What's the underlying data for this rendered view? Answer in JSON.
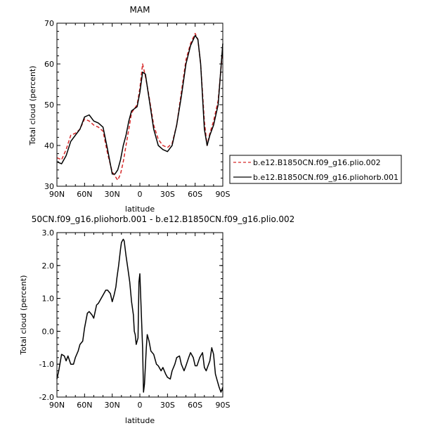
{
  "chart_data": [
    {
      "type": "line",
      "title": "MAM",
      "xlabel": "latitude",
      "ylabel": "Total cloud (percent)",
      "x_ticks": [
        "90N",
        "60N",
        "30N",
        "0",
        "30S",
        "60S",
        "90S"
      ],
      "y_ticks": [
        "30",
        "40",
        "50",
        "60",
        "70"
      ],
      "xlim": [
        90,
        -90
      ],
      "ylim": [
        30,
        70
      ],
      "legend": "right",
      "series": [
        {
          "name": "b.e12.B1850CN.f09_g16.plio.002",
          "color": "#d62728",
          "dash": "dashed",
          "x": [
            90,
            85,
            80,
            75,
            70,
            65,
            60,
            55,
            50,
            45,
            40,
            35,
            30,
            27,
            24,
            21,
            18,
            15,
            12,
            9,
            6,
            3,
            0,
            -3,
            -6,
            -10,
            -15,
            -20,
            -25,
            -30,
            -35,
            -40,
            -45,
            -50,
            -55,
            -60,
            -63,
            -66,
            -70,
            -73,
            -76,
            -80,
            -85,
            -90
          ],
          "y": [
            37,
            36.5,
            39,
            42.5,
            43,
            44,
            46.5,
            46,
            45,
            44.5,
            43.5,
            38,
            33.5,
            32.5,
            31.5,
            33,
            36,
            40,
            44,
            48,
            49,
            50,
            54,
            60,
            57,
            52,
            45,
            41.5,
            40,
            39.5,
            40.5,
            45,
            53,
            61,
            65,
            67.5,
            66,
            60,
            46,
            40,
            43,
            46,
            51,
            64
          ]
        },
        {
          "name": "b.e12.B1850CN.f09_g16.pliohorb.001",
          "color": "#000000",
          "dash": "solid",
          "x": [
            90,
            85,
            80,
            75,
            70,
            65,
            60,
            55,
            50,
            45,
            40,
            35,
            30,
            27,
            24,
            21,
            18,
            15,
            12,
            9,
            6,
            3,
            0,
            -3,
            -6,
            -10,
            -15,
            -20,
            -25,
            -30,
            -35,
            -40,
            -45,
            -50,
            -55,
            -60,
            -63,
            -66,
            -70,
            -73,
            -76,
            -80,
            -85,
            -90
          ],
          "y": [
            36,
            35.5,
            37.5,
            41,
            42.5,
            44,
            47,
            47.5,
            46,
            45.5,
            44.5,
            39,
            33,
            33,
            34,
            36.5,
            40,
            42.5,
            46,
            48.5,
            49,
            49.5,
            53,
            58,
            57.5,
            51.5,
            44,
            40,
            39,
            38.5,
            40,
            45,
            52,
            60,
            64.5,
            67,
            66,
            60,
            44,
            40,
            42.5,
            45,
            50,
            65
          ]
        }
      ]
    },
    {
      "type": "line",
      "title": "50CN.f09_g16.pliohorb.001 - b.e12.B1850CN.f09_g16.plio.002",
      "xlabel": "latitude",
      "ylabel": "Total cloud (percent)",
      "x_ticks": [
        "90N",
        "60N",
        "30N",
        "0",
        "30S",
        "60S",
        "90S"
      ],
      "y_ticks": [
        "-2.0",
        "-1.0",
        "0.0",
        "1.0",
        "2.0",
        "3.0"
      ],
      "xlim": [
        90,
        -90
      ],
      "ylim": [
        -2,
        3
      ],
      "series": [
        {
          "color": "#000000",
          "dash": "solid",
          "x": [
            90,
            88,
            85,
            82,
            80,
            78,
            75,
            72,
            70,
            67,
            65,
            62,
            60,
            57,
            55,
            52,
            50,
            47,
            45,
            42,
            40,
            37,
            35,
            32,
            30,
            28,
            26,
            25,
            23,
            21,
            20,
            18,
            17,
            15,
            13,
            11,
            9,
            7,
            6,
            5,
            4,
            2,
            1,
            0,
            -1,
            -3,
            -4,
            -5,
            -7,
            -8,
            -10,
            -12,
            -15,
            -18,
            -20,
            -23,
            -25,
            -28,
            -30,
            -33,
            -35,
            -38,
            -40,
            -43,
            -45,
            -48,
            -50,
            -53,
            -55,
            -58,
            -60,
            -62,
            -65,
            -68,
            -70,
            -72,
            -74,
            -76,
            -78,
            -80,
            -82,
            -84,
            -86,
            -88,
            -90
          ],
          "y": [
            -1.45,
            -1.2,
            -0.7,
            -0.75,
            -0.9,
            -0.75,
            -1.0,
            -1.0,
            -0.8,
            -0.6,
            -0.4,
            -0.3,
            0.1,
            0.55,
            0.6,
            0.5,
            0.4,
            0.8,
            0.85,
            1.0,
            1.1,
            1.25,
            1.25,
            1.15,
            0.9,
            1.1,
            1.35,
            1.6,
            2.0,
            2.5,
            2.7,
            2.8,
            2.75,
            2.3,
            1.9,
            1.5,
            0.9,
            0.5,
            0.0,
            -0.1,
            -0.4,
            -0.2,
            1.5,
            1.75,
            1.0,
            -0.5,
            -1.85,
            -1.6,
            -0.5,
            -0.1,
            -0.3,
            -0.6,
            -0.7,
            -1.0,
            -1.05,
            -1.2,
            -1.1,
            -1.3,
            -1.4,
            -1.45,
            -1.2,
            -1.0,
            -0.8,
            -0.75,
            -1.0,
            -1.2,
            -1.05,
            -0.8,
            -0.65,
            -0.8,
            -1.05,
            -1.05,
            -0.8,
            -0.65,
            -1.1,
            -1.2,
            -1.05,
            -0.9,
            -0.5,
            -0.7,
            -1.3,
            -1.5,
            -1.7,
            -1.85,
            -1.7
          ]
        }
      ]
    }
  ]
}
